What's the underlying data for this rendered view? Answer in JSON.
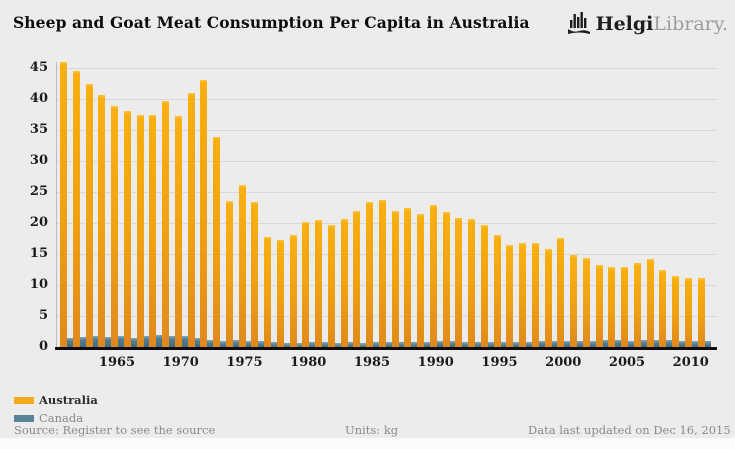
{
  "title": "Sheep and Goat Meat Consumption Per Capita in Australia",
  "logo": {
    "brand_bold": "Helgi",
    "brand_light": "Library."
  },
  "legend": {
    "australia": {
      "label": "Australia",
      "color": "#F5A81C"
    },
    "canada": {
      "label": "Canada",
      "color": "#5B8499"
    }
  },
  "footer": {
    "source": "Source: Register to see the source",
    "units": "Units: kg",
    "updated": "Data last updated on Dec 16, 2015"
  },
  "chart_data": {
    "type": "bar",
    "title": "Sheep and Goat Meat Consumption Per Capita in Australia",
    "xlabel": "",
    "ylabel": "kg",
    "ylim": [
      0,
      47
    ],
    "yticks": [
      0,
      5,
      10,
      15,
      20,
      25,
      30,
      35,
      40,
      45
    ],
    "xticks": [
      1965,
      1970,
      1975,
      1980,
      1985,
      1990,
      1995,
      2000,
      2005,
      2010
    ],
    "grid": "horizontal",
    "legend_position": "bottom-left",
    "categories": [
      1961,
      1962,
      1963,
      1964,
      1965,
      1966,
      1967,
      1968,
      1969,
      1970,
      1971,
      1972,
      1973,
      1974,
      1975,
      1976,
      1977,
      1978,
      1979,
      1980,
      1981,
      1982,
      1983,
      1984,
      1985,
      1986,
      1987,
      1988,
      1989,
      1990,
      1991,
      1992,
      1993,
      1994,
      1995,
      1996,
      1997,
      1998,
      1999,
      2000,
      2001,
      2002,
      2003,
      2004,
      2005,
      2006,
      2007,
      2008,
      2009,
      2010,
      2011
    ],
    "series": [
      {
        "name": "Australia",
        "color": "#F9AE11",
        "values": [
          46.0,
          44.5,
          42.4,
          40.6,
          38.8,
          38.1,
          37.5,
          37.5,
          39.6,
          37.2,
          40.9,
          43.1,
          33.8,
          23.6,
          26.2,
          23.4,
          17.8,
          17.2,
          18.1,
          20.1,
          20.5,
          19.7,
          20.6,
          21.9,
          23.4,
          23.7,
          21.9,
          22.5,
          21.5,
          22.9,
          21.7,
          20.8,
          20.6,
          19.7,
          18.1,
          16.5,
          16.8,
          16.7,
          15.8,
          17.6,
          14.8,
          14.4,
          13.3,
          12.9,
          12.9,
          13.6,
          14.2,
          12.4,
          11.4,
          11.2,
          11.1
        ]
      },
      {
        "name": "Canada",
        "color": "#4F7A90",
        "values": [
          1.4,
          1.6,
          1.7,
          1.6,
          1.8,
          1.5,
          1.7,
          1.9,
          1.8,
          1.7,
          1.5,
          1.2,
          1.0,
          1.2,
          1.0,
          0.9,
          0.8,
          0.7,
          0.7,
          0.8,
          0.8,
          0.7,
          0.8,
          0.7,
          0.8,
          0.8,
          0.8,
          0.8,
          0.8,
          0.9,
          0.9,
          0.8,
          0.8,
          0.8,
          0.8,
          0.8,
          0.8,
          0.9,
          0.9,
          0.9,
          1.0,
          1.0,
          1.1,
          1.1,
          1.0,
          1.1,
          1.2,
          1.2,
          1.0,
          1.0,
          1.0
        ]
      }
    ]
  }
}
